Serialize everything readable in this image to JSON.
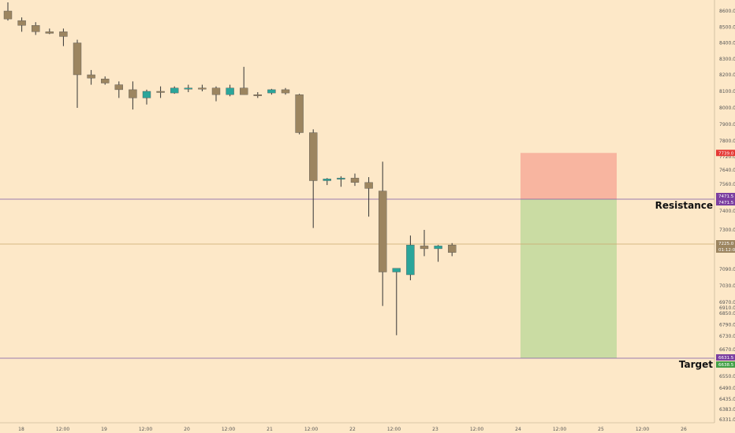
{
  "chart_data": {
    "type": "candlestick",
    "background": "#fde8c8",
    "colors": {
      "down": "#9c8560",
      "up": "#2ba59a",
      "wick": "#333333",
      "axis_text": "#555555",
      "resistance_line": "#7b5aa6",
      "current_line": "#c9a96e",
      "stop_zone": "#f8b5a0",
      "target_zone": "#cadca3",
      "stop_tag": "#e53935",
      "target_tag": "#43a047",
      "price_tag": "#9c8560",
      "level_tag": "#7b3fa0"
    },
    "ylim": [
      6331,
      8660
    ],
    "y_ticks": [
      "8600.0",
      "8500.0",
      "8400.0",
      "8300.0",
      "8200.0",
      "8100.0",
      "8000.0",
      "7900.0",
      "7800.0",
      "7720.0",
      "7640.0",
      "7560.0",
      "7400.0",
      "7300.0",
      "7225.0",
      "7090.0",
      "7030.0",
      "6970.0",
      "6910.0",
      "6850.0",
      "6790.0",
      "6730.0",
      "6670.0",
      "6550.0",
      "6490.0",
      "6435.0",
      "6383.0",
      "6331.0"
    ],
    "x_ticks": [
      "18",
      "12:00",
      "19",
      "12:00",
      "20",
      "12:00",
      "21",
      "12:00",
      "22",
      "12:00",
      "23",
      "12:00",
      "24",
      "12:00",
      "25",
      "12:00",
      "26"
    ],
    "candles": [
      {
        "o": 8600,
        "h": 8660,
        "l": 8540,
        "c": 8550
      },
      {
        "o": 8540,
        "h": 8560,
        "l": 8470,
        "c": 8510
      },
      {
        "o": 8510,
        "h": 8530,
        "l": 8450,
        "c": 8470
      },
      {
        "o": 8470,
        "h": 8490,
        "l": 8455,
        "c": 8460
      },
      {
        "o": 8470,
        "h": 8490,
        "l": 8380,
        "c": 8440
      },
      {
        "o": 8400,
        "h": 8420,
        "l": 8000,
        "c": 8200
      },
      {
        "o": 8200,
        "h": 8230,
        "l": 8140,
        "c": 8180
      },
      {
        "o": 8175,
        "h": 8190,
        "l": 8140,
        "c": 8150
      },
      {
        "o": 8140,
        "h": 8160,
        "l": 8060,
        "c": 8110
      },
      {
        "o": 8110,
        "h": 8160,
        "l": 7990,
        "c": 8060
      },
      {
        "o": 8060,
        "h": 8110,
        "l": 8020,
        "c": 8100
      },
      {
        "o": 8100,
        "h": 8130,
        "l": 8060,
        "c": 8095
      },
      {
        "o": 8090,
        "h": 8130,
        "l": 8085,
        "c": 8120
      },
      {
        "o": 8115,
        "h": 8140,
        "l": 8095,
        "c": 8120
      },
      {
        "o": 8120,
        "h": 8140,
        "l": 8100,
        "c": 8115
      },
      {
        "o": 8120,
        "h": 8130,
        "l": 8040,
        "c": 8080
      },
      {
        "o": 8080,
        "h": 8140,
        "l": 8070,
        "c": 8120
      },
      {
        "o": 8120,
        "h": 8250,
        "l": 8080,
        "c": 8080
      },
      {
        "o": 8080,
        "h": 8095,
        "l": 8060,
        "c": 8075
      },
      {
        "o": 8090,
        "h": 8115,
        "l": 8080,
        "c": 8110
      },
      {
        "o": 8110,
        "h": 8120,
        "l": 8080,
        "c": 8090
      },
      {
        "o": 8080,
        "h": 8085,
        "l": 7840,
        "c": 7850
      },
      {
        "o": 7850,
        "h": 7870,
        "l": 7310,
        "c": 7580
      },
      {
        "o": 7580,
        "h": 7595,
        "l": 7555,
        "c": 7590
      },
      {
        "o": 7590,
        "h": 7605,
        "l": 7545,
        "c": 7595
      },
      {
        "o": 7595,
        "h": 7620,
        "l": 7550,
        "c": 7570
      },
      {
        "o": 7570,
        "h": 7600,
        "l": 7370,
        "c": 7535
      },
      {
        "o": 7520,
        "h": 7690,
        "l": 6930,
        "c": 7080
      },
      {
        "o": 7080,
        "h": 7090,
        "l": 6735,
        "c": 7095
      },
      {
        "o": 7070,
        "h": 7270,
        "l": 7050,
        "c": 7220
      },
      {
        "o": 7215,
        "h": 7300,
        "l": 7160,
        "c": 7200
      },
      {
        "o": 7200,
        "h": 7220,
        "l": 7130,
        "c": 7215
      },
      {
        "o": 7220,
        "h": 7230,
        "l": 7160,
        "c": 7180
      }
    ],
    "levels": {
      "stop": 7739,
      "resistance": 7471.5,
      "current": 7225,
      "target": 6631.5
    },
    "annotations": {
      "resistance": "Resistance",
      "target": "Target"
    },
    "price_tags": {
      "stop": "7739.0",
      "resistance_top": "7471.5",
      "resistance_bottom": "7471.5",
      "current_top": "7225.0",
      "current_bottom": "01:12:05",
      "target_top": "6631.5",
      "target_bottom": "6638.5"
    }
  }
}
